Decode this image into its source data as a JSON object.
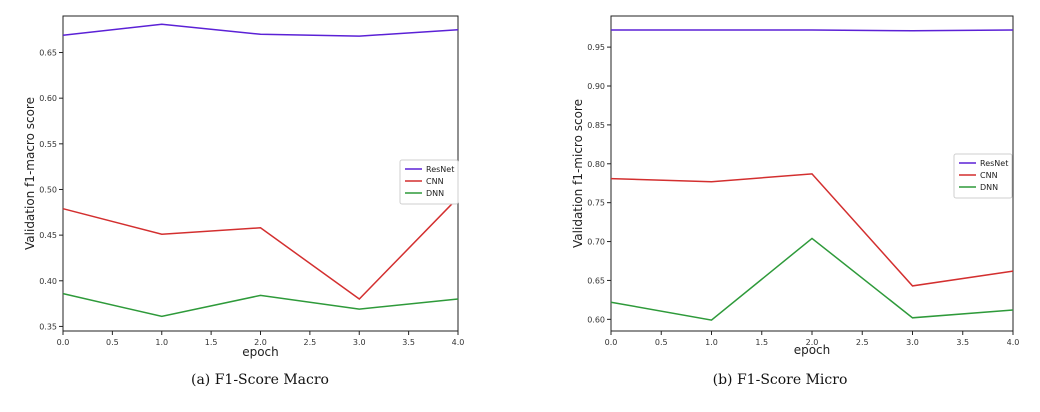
{
  "chart_data": [
    {
      "type": "line",
      "panel": "a",
      "caption": "(a) F1-Score Macro",
      "xlabel": "epoch",
      "ylabel": "Validation f1-macro score",
      "xlim": [
        0,
        4
      ],
      "ylim": [
        0.345,
        0.69
      ],
      "xticks": [
        "0.0",
        "0.5",
        "1.0",
        "1.5",
        "2.0",
        "2.5",
        "3.0",
        "3.5",
        "4.0"
      ],
      "yticks": [
        "0.35",
        "0.40",
        "0.45",
        "0.50",
        "0.55",
        "0.60",
        "0.65"
      ],
      "grid": false,
      "legend_position": "right",
      "x": [
        0,
        1,
        2,
        3,
        4
      ],
      "series": [
        {
          "name": "ResNet",
          "color": "#5b21d6",
          "values": [
            0.669,
            0.681,
            0.67,
            0.668,
            0.675
          ]
        },
        {
          "name": "CNN",
          "color": "#d32f2f",
          "values": [
            0.479,
            0.451,
            0.458,
            0.38,
            0.491
          ]
        },
        {
          "name": "DNN",
          "color": "#2e9a3a",
          "values": [
            0.386,
            0.361,
            0.384,
            0.369,
            0.38
          ]
        }
      ]
    },
    {
      "type": "line",
      "panel": "b",
      "caption": "(b) F1-Score Micro",
      "xlabel": "epoch",
      "ylabel": "Validation f1-micro score",
      "xlim": [
        0,
        4
      ],
      "ylim": [
        0.585,
        0.99
      ],
      "xticks": [
        "0.0",
        "0.5",
        "1.0",
        "1.5",
        "2.0",
        "2.5",
        "3.0",
        "3.5",
        "4.0"
      ],
      "yticks": [
        "0.60",
        "0.65",
        "0.70",
        "0.75",
        "0.80",
        "0.85",
        "0.90",
        "0.95"
      ],
      "grid": false,
      "legend_position": "right",
      "x": [
        0,
        1,
        2,
        3,
        4
      ],
      "series": [
        {
          "name": "ResNet",
          "color": "#5b21d6",
          "values": [
            0.972,
            0.972,
            0.972,
            0.971,
            0.972
          ]
        },
        {
          "name": "CNN",
          "color": "#d32f2f",
          "values": [
            0.781,
            0.777,
            0.787,
            0.643,
            0.662
          ]
        },
        {
          "name": "DNN",
          "color": "#2e9a3a",
          "values": [
            0.622,
            0.599,
            0.704,
            0.602,
            0.612
          ]
        }
      ]
    }
  ]
}
